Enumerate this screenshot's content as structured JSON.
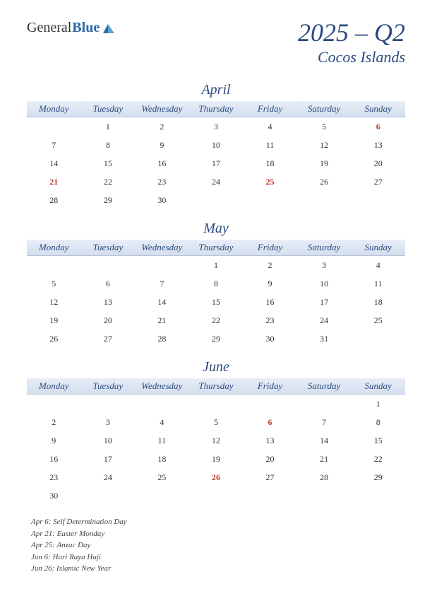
{
  "logo": {
    "part1": "General",
    "part2": "Blue"
  },
  "header": {
    "title": "2025 – Q2",
    "subtitle": "Cocos Islands"
  },
  "day_headers": [
    "Monday",
    "Tuesday",
    "Wednesday",
    "Thursday",
    "Friday",
    "Saturday",
    "Sunday"
  ],
  "colors": {
    "accent": "#2b4a7f",
    "holiday": "#c0392b",
    "header_grad_top": "#e8eef8",
    "header_grad_bottom": "#d4deee"
  },
  "months": [
    {
      "name": "April",
      "weeks": [
        [
          "",
          "1",
          "2",
          "3",
          "4",
          "5",
          "6"
        ],
        [
          "7",
          "8",
          "9",
          "10",
          "11",
          "12",
          "13"
        ],
        [
          "14",
          "15",
          "16",
          "17",
          "18",
          "19",
          "20"
        ],
        [
          "21",
          "22",
          "23",
          "24",
          "25",
          "26",
          "27"
        ],
        [
          "28",
          "29",
          "30",
          "",
          "",
          "",
          ""
        ]
      ],
      "holiday_cells": [
        [
          0,
          6
        ],
        [
          3,
          0
        ],
        [
          3,
          4
        ]
      ]
    },
    {
      "name": "May",
      "weeks": [
        [
          "",
          "",
          "",
          "1",
          "2",
          "3",
          "4"
        ],
        [
          "5",
          "6",
          "7",
          "8",
          "9",
          "10",
          "11"
        ],
        [
          "12",
          "13",
          "14",
          "15",
          "16",
          "17",
          "18"
        ],
        [
          "19",
          "20",
          "21",
          "22",
          "23",
          "24",
          "25"
        ],
        [
          "26",
          "27",
          "28",
          "29",
          "30",
          "31",
          ""
        ]
      ],
      "holiday_cells": []
    },
    {
      "name": "June",
      "weeks": [
        [
          "",
          "",
          "",
          "",
          "",
          "",
          "1"
        ],
        [
          "2",
          "3",
          "4",
          "5",
          "6",
          "7",
          "8"
        ],
        [
          "9",
          "10",
          "11",
          "12",
          "13",
          "14",
          "15"
        ],
        [
          "16",
          "17",
          "18",
          "19",
          "20",
          "21",
          "22"
        ],
        [
          "23",
          "24",
          "25",
          "26",
          "27",
          "28",
          "29"
        ],
        [
          "30",
          "",
          "",
          "",
          "",
          "",
          ""
        ]
      ],
      "holiday_cells": [
        [
          1,
          4
        ],
        [
          4,
          3
        ]
      ]
    }
  ],
  "holiday_list": [
    "Apr 6: Self Determination Day",
    "Apr 21: Easter Monday",
    "Apr 25: Anzac Day",
    "Jun 6: Hari Raya Haji",
    "Jun 26: Islamic New Year"
  ]
}
